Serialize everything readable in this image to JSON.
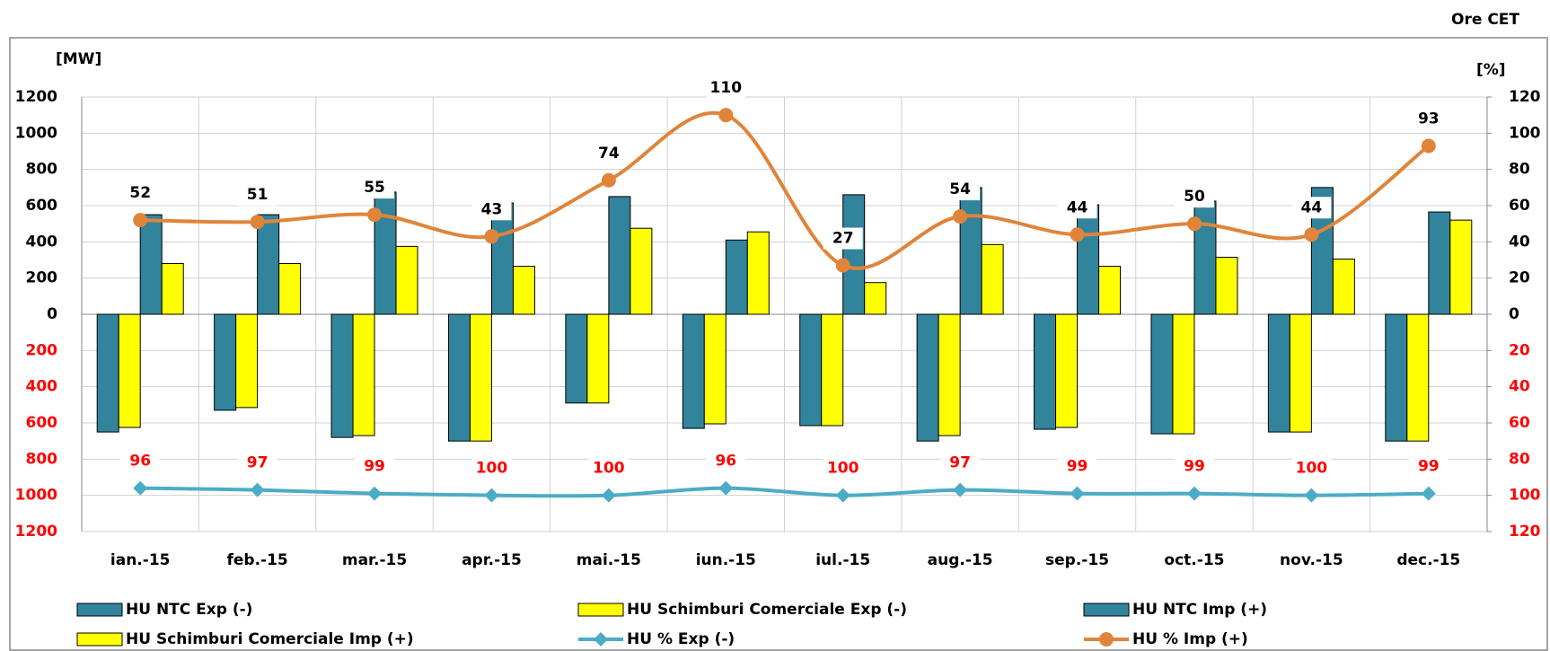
{
  "chart_data": {
    "type": "bar",
    "note_top_right": "Ore CET",
    "y_label": "[MW]",
    "y2_label": "[%]",
    "categories": [
      "ian.-15",
      "feb.-15",
      "mar.-15",
      "apr.-15",
      "mai.-15",
      "iun.-15",
      "iul.-15",
      "aug.-15",
      "sep.-15",
      "oct.-15",
      "nov.-15",
      "dec.-15"
    ],
    "ylim": [
      -1200,
      1200
    ],
    "yticks": [
      {
        "value": -1200,
        "label": "1200"
      },
      {
        "value": -1000,
        "label": "1000"
      },
      {
        "value": -800,
        "label": "800"
      },
      {
        "value": -600,
        "label": "600"
      },
      {
        "value": -400,
        "label": "400"
      },
      {
        "value": -200,
        "label": "200"
      },
      0,
      200,
      400,
      600,
      800,
      1000,
      1200
    ],
    "y2lim": [
      -120,
      120
    ],
    "y2ticks": [
      {
        "value": -120,
        "label": "120"
      },
      {
        "value": -100,
        "label": "100"
      },
      {
        "value": -80,
        "label": "80"
      },
      {
        "value": -60,
        "label": "60"
      },
      {
        "value": -40,
        "label": "40"
      },
      {
        "value": -20,
        "label": "20"
      },
      0,
      20,
      40,
      60,
      80,
      100,
      120
    ],
    "grid": true,
    "series": [
      {
        "name": "HU NTC Exp (-)",
        "type": "bar",
        "color": "#31849b",
        "values": [
          -650,
          -530,
          -680,
          -700,
          -490,
          -630,
          -615,
          -700,
          -635,
          -660,
          -650,
          -700
        ]
      },
      {
        "name": "HU Schimburi Comerciale Exp (-)",
        "type": "bar",
        "color": "#ffff00",
        "values": [
          -625,
          -515,
          -670,
          -700,
          -490,
          -605,
          -615,
          -670,
          -625,
          -660,
          -650,
          -700
        ]
      },
      {
        "name": "HU NTC Imp (+)",
        "type": "bar",
        "color": "#31849b",
        "values": [
          550,
          550,
          675,
          615,
          650,
          410,
          660,
          700,
          605,
          625,
          700,
          565
        ]
      },
      {
        "name": "HU Schimburi Comerciale Imp (+)",
        "type": "bar",
        "color": "#ffff00",
        "values": [
          280,
          280,
          375,
          265,
          475,
          455,
          175,
          385,
          265,
          315,
          305,
          520
        ]
      },
      {
        "name": "HU % Exp (-)",
        "type": "line",
        "axis": "y2",
        "marker": "diamond",
        "color": "#4bacc6",
        "label_color": "#ff0000",
        "values": [
          -96,
          -97,
          -99,
          -100,
          -100,
          -96,
          -100,
          -97,
          -99,
          -99,
          -100,
          -99
        ],
        "value_labels": [
          "96",
          "97",
          "99",
          "100",
          "100",
          "96",
          "100",
          "97",
          "99",
          "99",
          "100",
          "99"
        ]
      },
      {
        "name": "HU % Imp (+)",
        "type": "line",
        "axis": "y2",
        "marker": "circle",
        "color": "#e0843a",
        "label_color": "#000000",
        "values": [
          52,
          51,
          55,
          43,
          74,
          110,
          27,
          54,
          44,
          50,
          44,
          93
        ]
      }
    ]
  }
}
